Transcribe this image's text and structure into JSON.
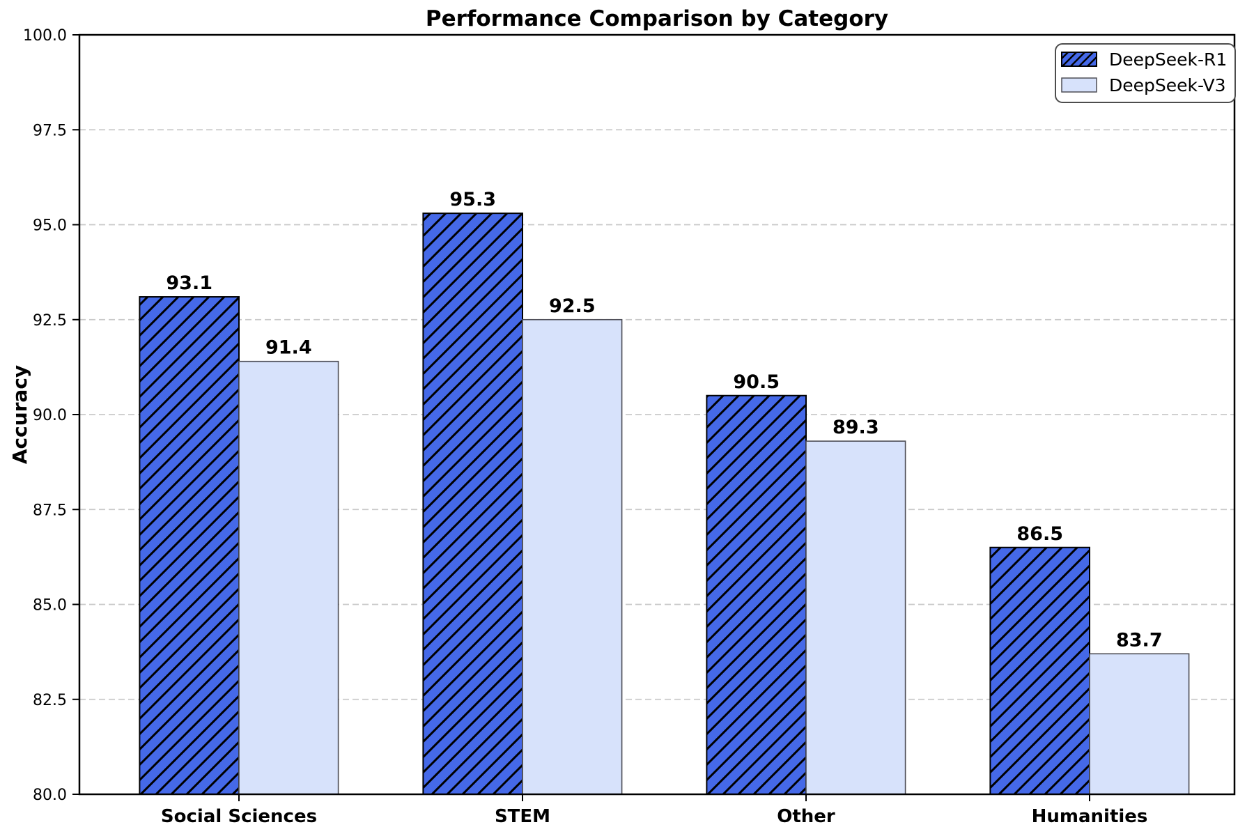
{
  "chart_data": {
    "type": "bar",
    "title": "Performance Comparison by Category",
    "xlabel": "",
    "ylabel": "Accuracy",
    "categories": [
      "Social Sciences",
      "STEM",
      "Other",
      "Humanities"
    ],
    "series": [
      {
        "name": "DeepSeek-R1",
        "values": [
          93.1,
          95.3,
          90.5,
          86.5
        ],
        "color": "#4569E8",
        "hatch": "/"
      },
      {
        "name": "DeepSeek-V3",
        "values": [
          91.4,
          92.5,
          89.3,
          83.7
        ],
        "color": "#D7E2FB",
        "hatch": ""
      }
    ],
    "value_labels": [
      "93.1",
      "91.4",
      "95.3",
      "92.5",
      "90.5",
      "89.3",
      "86.5",
      "83.7"
    ],
    "ylim": [
      80.0,
      100.0
    ],
    "ytick_labels": [
      "80.0",
      "82.5",
      "85.0",
      "87.5",
      "90.0",
      "92.5",
      "95.0",
      "97.5",
      "100.0"
    ],
    "grid": "horizontal-dashed",
    "legend_position": "upper-right",
    "legend_entries": [
      "DeepSeek-R1",
      "DeepSeek-V3"
    ]
  }
}
